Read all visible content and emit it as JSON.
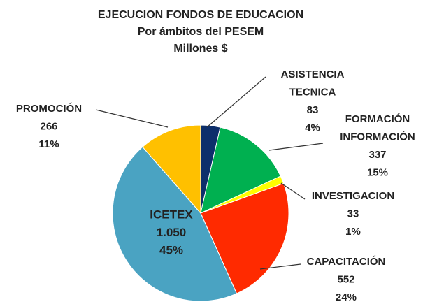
{
  "chart_data": {
    "type": "pie",
    "title": [
      "EJECUCION FONDOS DE EDUCACION",
      "Por ámbitos del PESEM",
      "Millones $"
    ],
    "categories": [
      [
        "ASISTENCIA",
        "TECNICA"
      ],
      [
        "FORMACIÓN",
        "INFORMACIÓN"
      ],
      [
        "INVESTIGACION"
      ],
      [
        "CAPACITACIÓN"
      ],
      [
        "ICETEX"
      ],
      [
        "PROMOCIÓN"
      ]
    ],
    "values": [
      83,
      337,
      33,
      552,
      1050,
      266
    ],
    "value_labels": [
      "83",
      "337",
      "33",
      "552",
      "1.050",
      "266"
    ],
    "percent_labels": [
      "4%",
      "15%",
      "1%",
      "24%",
      "45%",
      "11%"
    ],
    "colors": [
      "#0d2f6b",
      "#00b050",
      "#ffff00",
      "#ff2a00",
      "#4aa3c2",
      "#ffc000"
    ]
  }
}
